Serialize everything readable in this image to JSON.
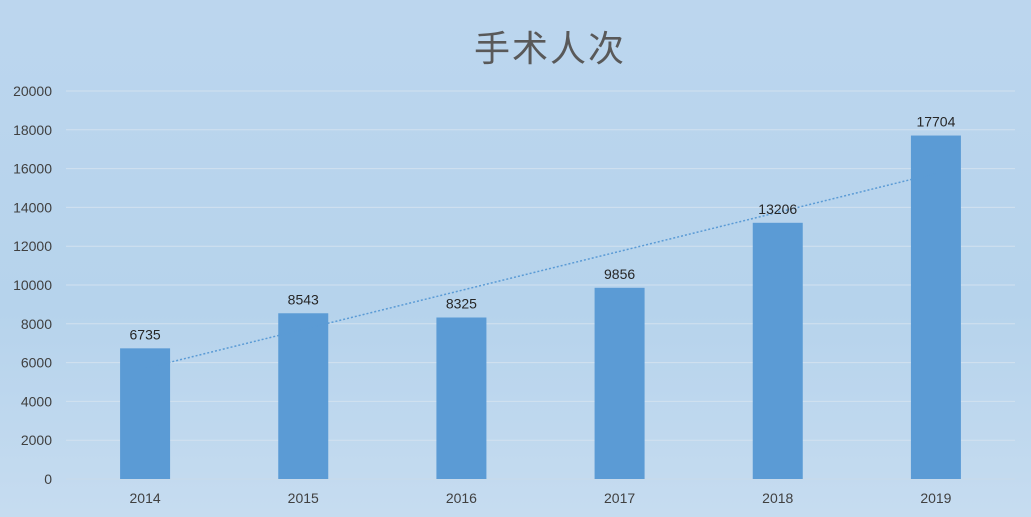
{
  "chart_data": {
    "type": "bar",
    "title": "手术人次",
    "categories": [
      "2014",
      "2015",
      "2016",
      "2017",
      "2018",
      "2019"
    ],
    "values": [
      6735,
      8543,
      8325,
      9856,
      13206,
      17704
    ],
    "ylim": [
      0,
      20000
    ],
    "yticks": [
      0,
      2000,
      4000,
      6000,
      8000,
      10000,
      12000,
      14000,
      16000,
      18000,
      20000
    ],
    "grid": true,
    "trendline": "linear dotted",
    "bar_color": "#5b9bd5",
    "trend_color": "#5b9bd5"
  }
}
